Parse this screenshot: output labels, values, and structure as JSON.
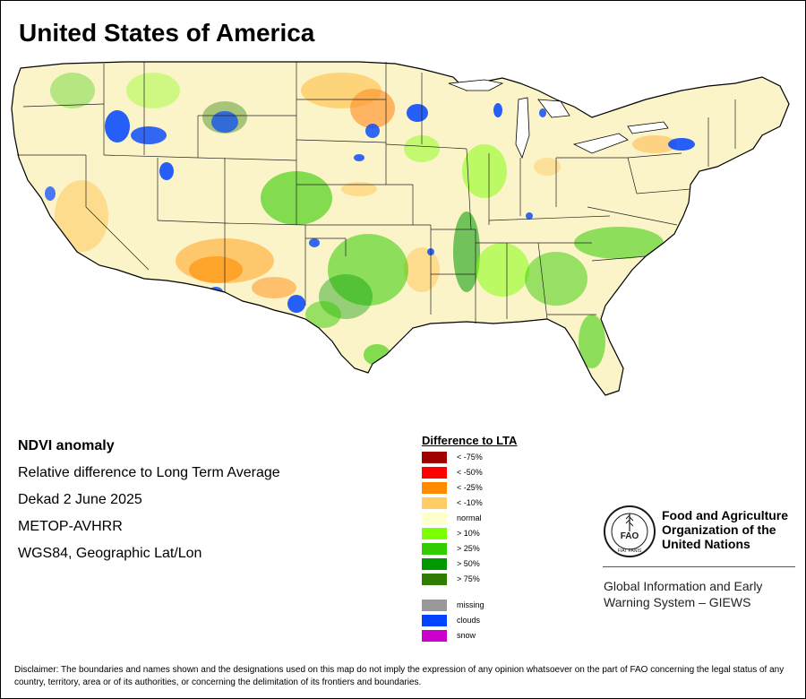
{
  "title": "United States of America",
  "meta": {
    "title": "NDVI anomaly",
    "line1": "Relative difference to Long Term Average",
    "line2": "Dekad 2 June 2025",
    "line3": "METOP-AVHRR",
    "line4": "WGS84, Geographic Lat/Lon"
  },
  "legend": {
    "title": "Difference to LTA",
    "classes": [
      {
        "label": "< -75%",
        "color": "#a00000"
      },
      {
        "label": "< -50%",
        "color": "#ff0000"
      },
      {
        "label": "< -25%",
        "color": "#ff8c00"
      },
      {
        "label": "< -10%",
        "color": "#ffcc66"
      },
      {
        "label": "normal",
        "color": "#ffffcc"
      },
      {
        "label": "> 10%",
        "color": "#7cff00"
      },
      {
        "label": "> 25%",
        "color": "#33cc00"
      },
      {
        "label": "> 50%",
        "color": "#009900"
      },
      {
        "label": "> 75%",
        "color": "#2e7d00"
      }
    ],
    "extra": [
      {
        "label": "missing",
        "color": "#999999"
      },
      {
        "label": "clouds",
        "color": "#0044ff"
      },
      {
        "label": "snow",
        "color": "#cc00cc"
      }
    ]
  },
  "org": {
    "name": "Food and Agriculture Organization of the United Nations",
    "logo_text": "FAO",
    "logo_ring_text": "FIAT PANIS"
  },
  "giews": "Global Information and Early Warning System – GIEWS",
  "disclaimer": "Disclaimer: The boundaries and names shown and the designations used on this map do not imply the expression of any opinion whatsoever on the part of FAO concerning the legal status of any country, territory, area or of its authorities, or concerning the delimitation of its frontiers and boundaries."
}
